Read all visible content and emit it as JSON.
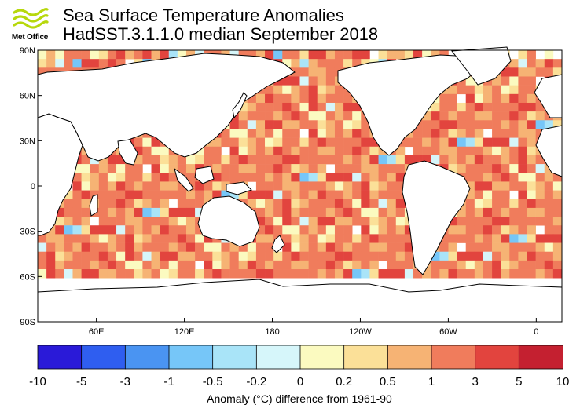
{
  "header": {
    "logo_text": "Met Office",
    "title": "Sea Surface Temperature Anomalies",
    "subtitle": "HadSST.3.1.1.0 median September 2018"
  },
  "map": {
    "lat_labels": [
      "90N",
      "60N",
      "30N",
      "0",
      "30S",
      "60S",
      "90S"
    ],
    "lon_labels": [
      "60E",
      "120E",
      "180",
      "120W",
      "60W",
      "0"
    ],
    "land_color": "#ffffff",
    "missing_color": "#ffffff",
    "coastline_color": "#000000"
  },
  "colorbar": {
    "title": "Anomaly (°C) difference from 1961-90",
    "tick_labels": [
      "-10",
      "-5",
      "-3",
      "-1",
      "-0.5",
      "-0.2",
      "0",
      "0.2",
      "0.5",
      "1",
      "3",
      "5",
      "10"
    ],
    "colors": [
      "#2a1ad8",
      "#2f5ef0",
      "#4a94f2",
      "#76c6f8",
      "#a9e4f8",
      "#d6f6fa",
      "#fbfac0",
      "#fbe098",
      "#f6b374",
      "#f07c5c",
      "#e2443e",
      "#c42030"
    ]
  }
}
